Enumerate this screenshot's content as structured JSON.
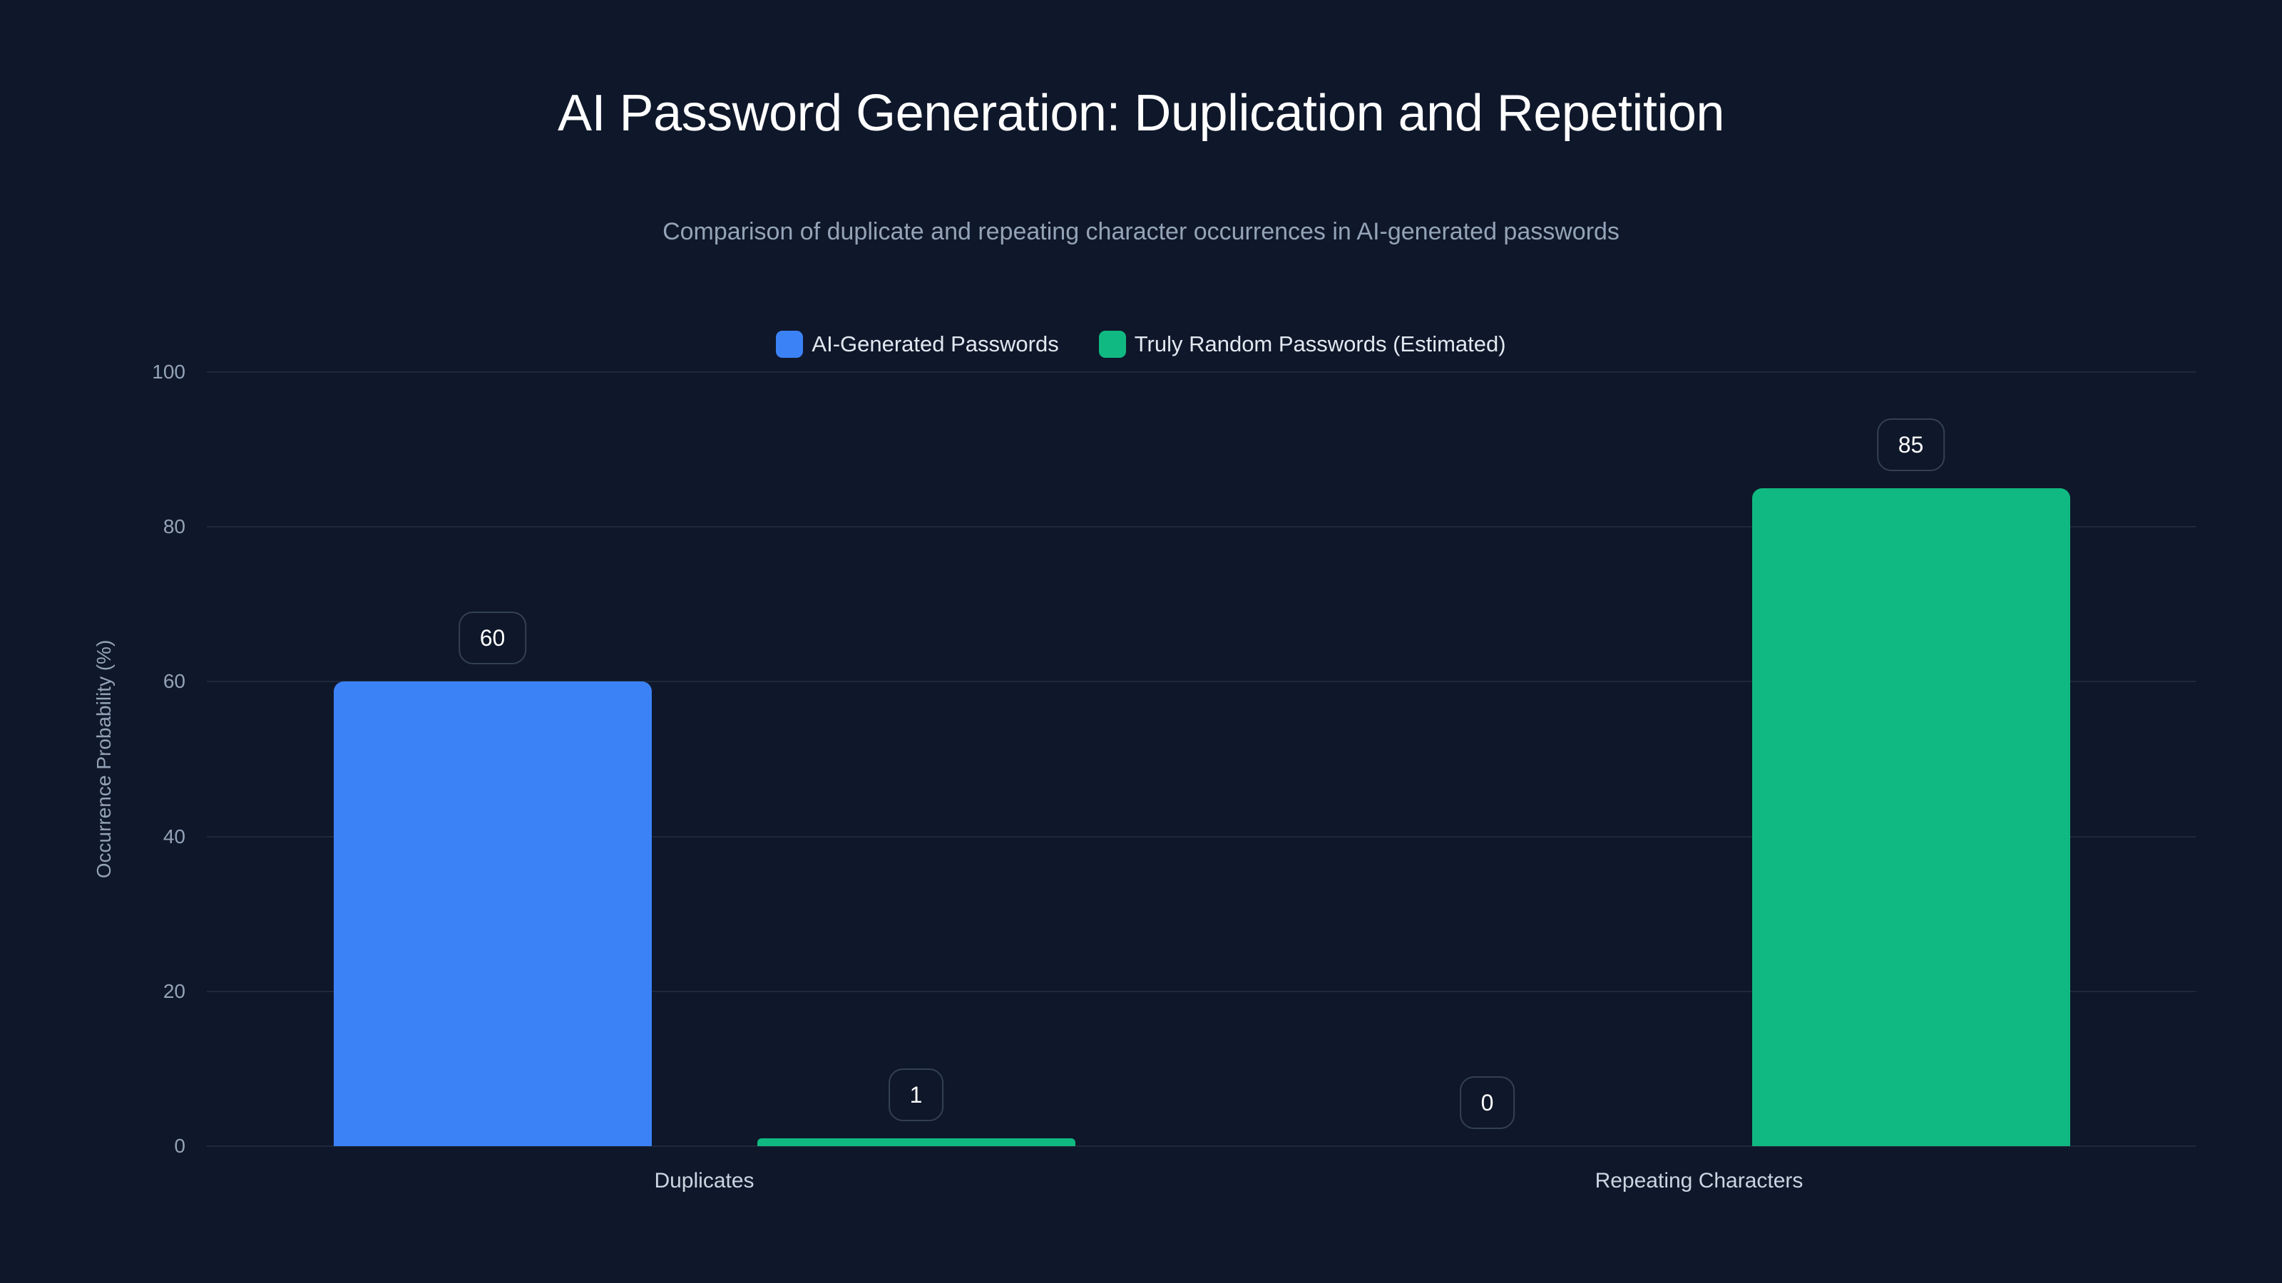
{
  "header": {
    "title": "AI Password Generation: Duplication and Repetition",
    "subtitle": "Comparison of duplicate and repeating character occurrences in AI-generated passwords"
  },
  "legend": [
    {
      "label": "AI-Generated Passwords",
      "color": "#3b82f6"
    },
    {
      "label": "Truly Random Passwords (Estimated)",
      "color": "#10b981"
    }
  ],
  "axes": {
    "ylabel": "Occurrence Probability (%)",
    "yticks": [
      "0",
      "20",
      "40",
      "60",
      "80",
      "100"
    ],
    "xticks": [
      "Duplicates",
      "Repeating Characters"
    ]
  },
  "colors": {
    "background": "#0f172a",
    "grid": "#1e293b",
    "series_ai": "#3b82f6",
    "series_random": "#10b981"
  },
  "chart_data": {
    "type": "bar",
    "title": "AI Password Generation: Duplication and Repetition",
    "subtitle": "Comparison of duplicate and repeating character occurrences in AI-generated passwords",
    "xlabel": "",
    "ylabel": "Occurrence Probability (%)",
    "ylim": [
      0,
      100
    ],
    "yticks": [
      0,
      20,
      40,
      60,
      80,
      100
    ],
    "grid": true,
    "legend_position": "top",
    "categories": [
      "Duplicates",
      "Repeating Characters"
    ],
    "series": [
      {
        "name": "AI-Generated Passwords",
        "color": "#3b82f6",
        "values": [
          60,
          0
        ]
      },
      {
        "name": "Truly Random Passwords (Estimated)",
        "color": "#10b981",
        "values": [
          1,
          85
        ]
      }
    ],
    "data_labels": true
  }
}
